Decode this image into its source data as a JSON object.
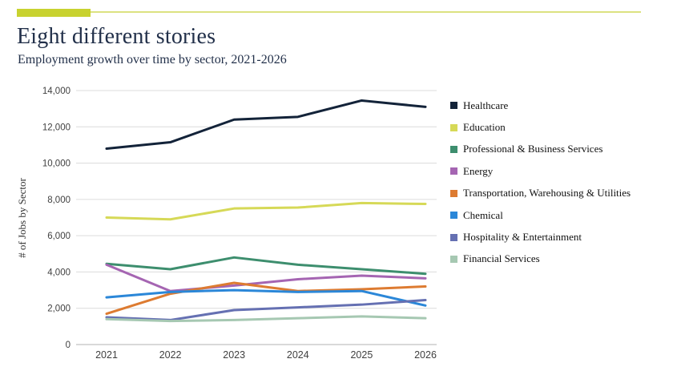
{
  "page": {
    "title": "Eight different stories",
    "subtitle": "Employment growth over time by sector, 2021-2026",
    "accent_bar_color": "#c8d22f",
    "accent_line_color": "#dce281"
  },
  "chart_data": {
    "type": "line",
    "title": "Eight different stories",
    "subtitle": "Employment growth over time by sector, 2021-2026",
    "categories": [
      "2021",
      "2022",
      "2023",
      "2024",
      "2025",
      "2026"
    ],
    "xlabel": "",
    "ylabel": "# of Jobs by Sector",
    "ylim": [
      0,
      14000
    ],
    "ytick_step": 2000,
    "grid": true,
    "legend_position": "right",
    "series": [
      {
        "name": "Healthcare",
        "color": "#132339",
        "values": [
          10800,
          11150,
          12400,
          12550,
          13450,
          13100
        ]
      },
      {
        "name": "Education",
        "color": "#d6d957",
        "values": [
          7000,
          6900,
          7500,
          7550,
          7800,
          7750
        ]
      },
      {
        "name": "Professional & Business Services",
        "color": "#3d8e6e",
        "values": [
          4450,
          4150,
          4800,
          4400,
          4150,
          3900
        ]
      },
      {
        "name": "Energy",
        "color": "#a565b2",
        "values": [
          4400,
          2950,
          3250,
          3600,
          3800,
          3650
        ]
      },
      {
        "name": "Transportation, Warehousing & Utilities",
        "color": "#dd7b31",
        "values": [
          1700,
          2800,
          3400,
          2950,
          3050,
          3200
        ]
      },
      {
        "name": "Chemical",
        "color": "#2b87d8",
        "values": [
          2600,
          2900,
          3000,
          2900,
          2950,
          2150
        ]
      },
      {
        "name": "Hospitality & Entertainment",
        "color": "#6570b2",
        "values": [
          1500,
          1350,
          1900,
          2050,
          2200,
          2450
        ]
      },
      {
        "name": "Financial Services",
        "color": "#a6c8b2",
        "values": [
          1400,
          1300,
          1350,
          1450,
          1550,
          1450
        ]
      }
    ]
  }
}
